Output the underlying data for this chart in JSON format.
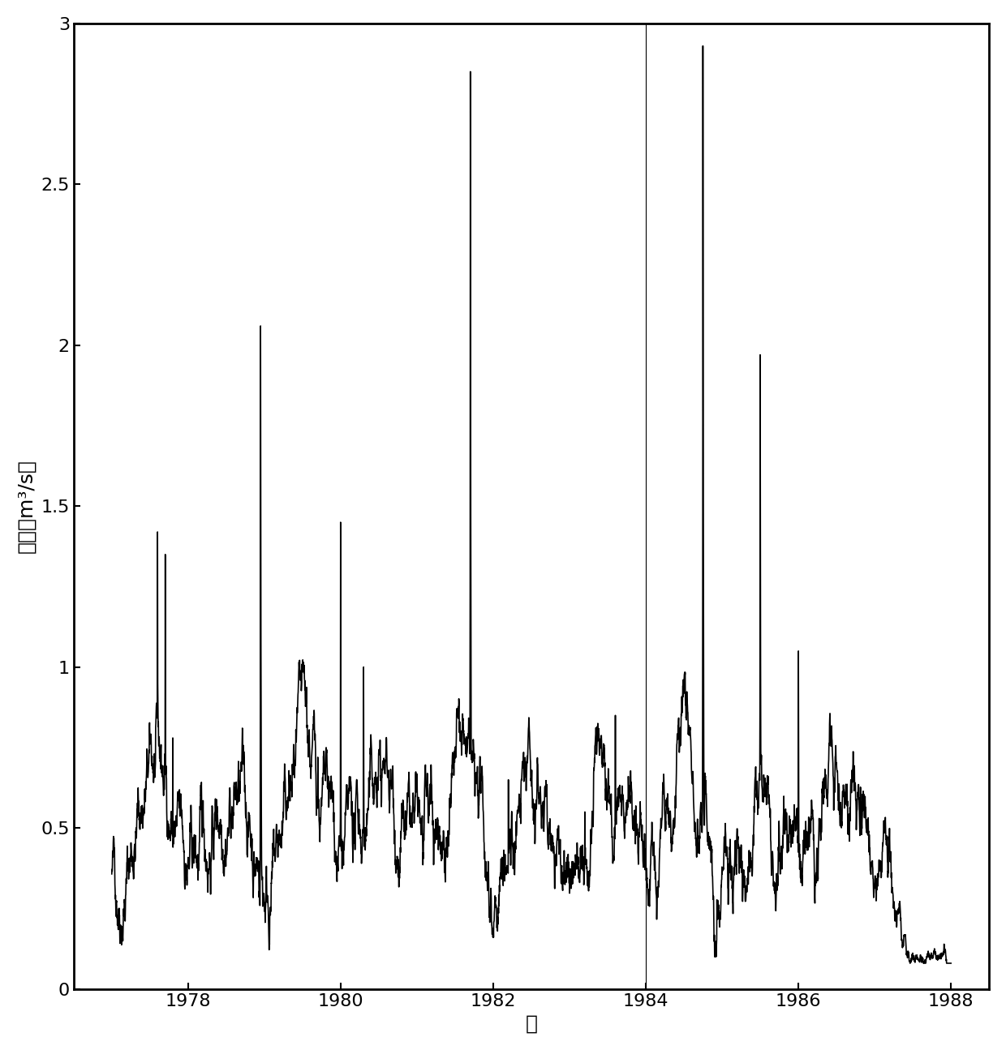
{
  "title": "",
  "xlabel": "年",
  "ylabel": "基流（m³/s）",
  "xlim": [
    1976.5,
    1988.5
  ],
  "ylim": [
    0,
    3.0
  ],
  "yticks": [
    0,
    0.5,
    1.0,
    1.5,
    2.0,
    2.5,
    3.0
  ],
  "xticks": [
    1978,
    1980,
    1982,
    1984,
    1986,
    1988
  ],
  "start_year": 1977.0,
  "end_year": 1988.0,
  "line_color": "#000000",
  "line_width": 1.2,
  "background_color": "#ffffff",
  "vline_x": 1984.0,
  "vline_color": "#000000",
  "xlabel_fontsize": 18,
  "ylabel_fontsize": 18,
  "tick_fontsize": 16
}
